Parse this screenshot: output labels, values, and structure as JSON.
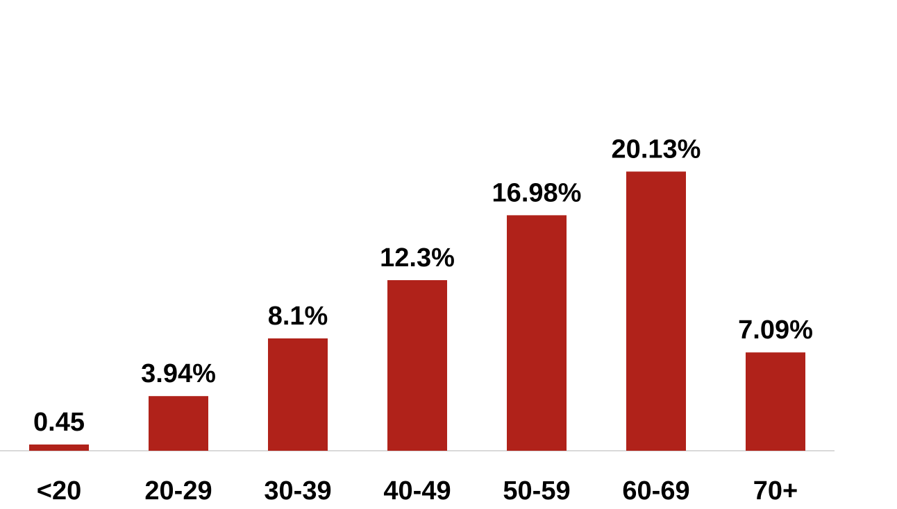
{
  "colors": {
    "bar": "#b0221a",
    "axis": "#d9d9d9",
    "text": "#000000",
    "background": "#ffffff"
  },
  "chart_data": {
    "type": "bar",
    "categories": [
      "<20",
      "20-29",
      "30-39",
      "40-49",
      "50-59",
      "60-69",
      "70+"
    ],
    "values": [
      0.45,
      3.94,
      8.1,
      12.3,
      16.98,
      20.13,
      7.09
    ],
    "data_labels": [
      "0.45",
      "3.94%",
      "8.1%",
      "12.3%",
      "16.98%",
      "20.13%",
      "7.09%"
    ],
    "title": "",
    "xlabel": "",
    "ylabel": "",
    "ylim": [
      0,
      27.3
    ],
    "grid": false,
    "legend": "none"
  }
}
